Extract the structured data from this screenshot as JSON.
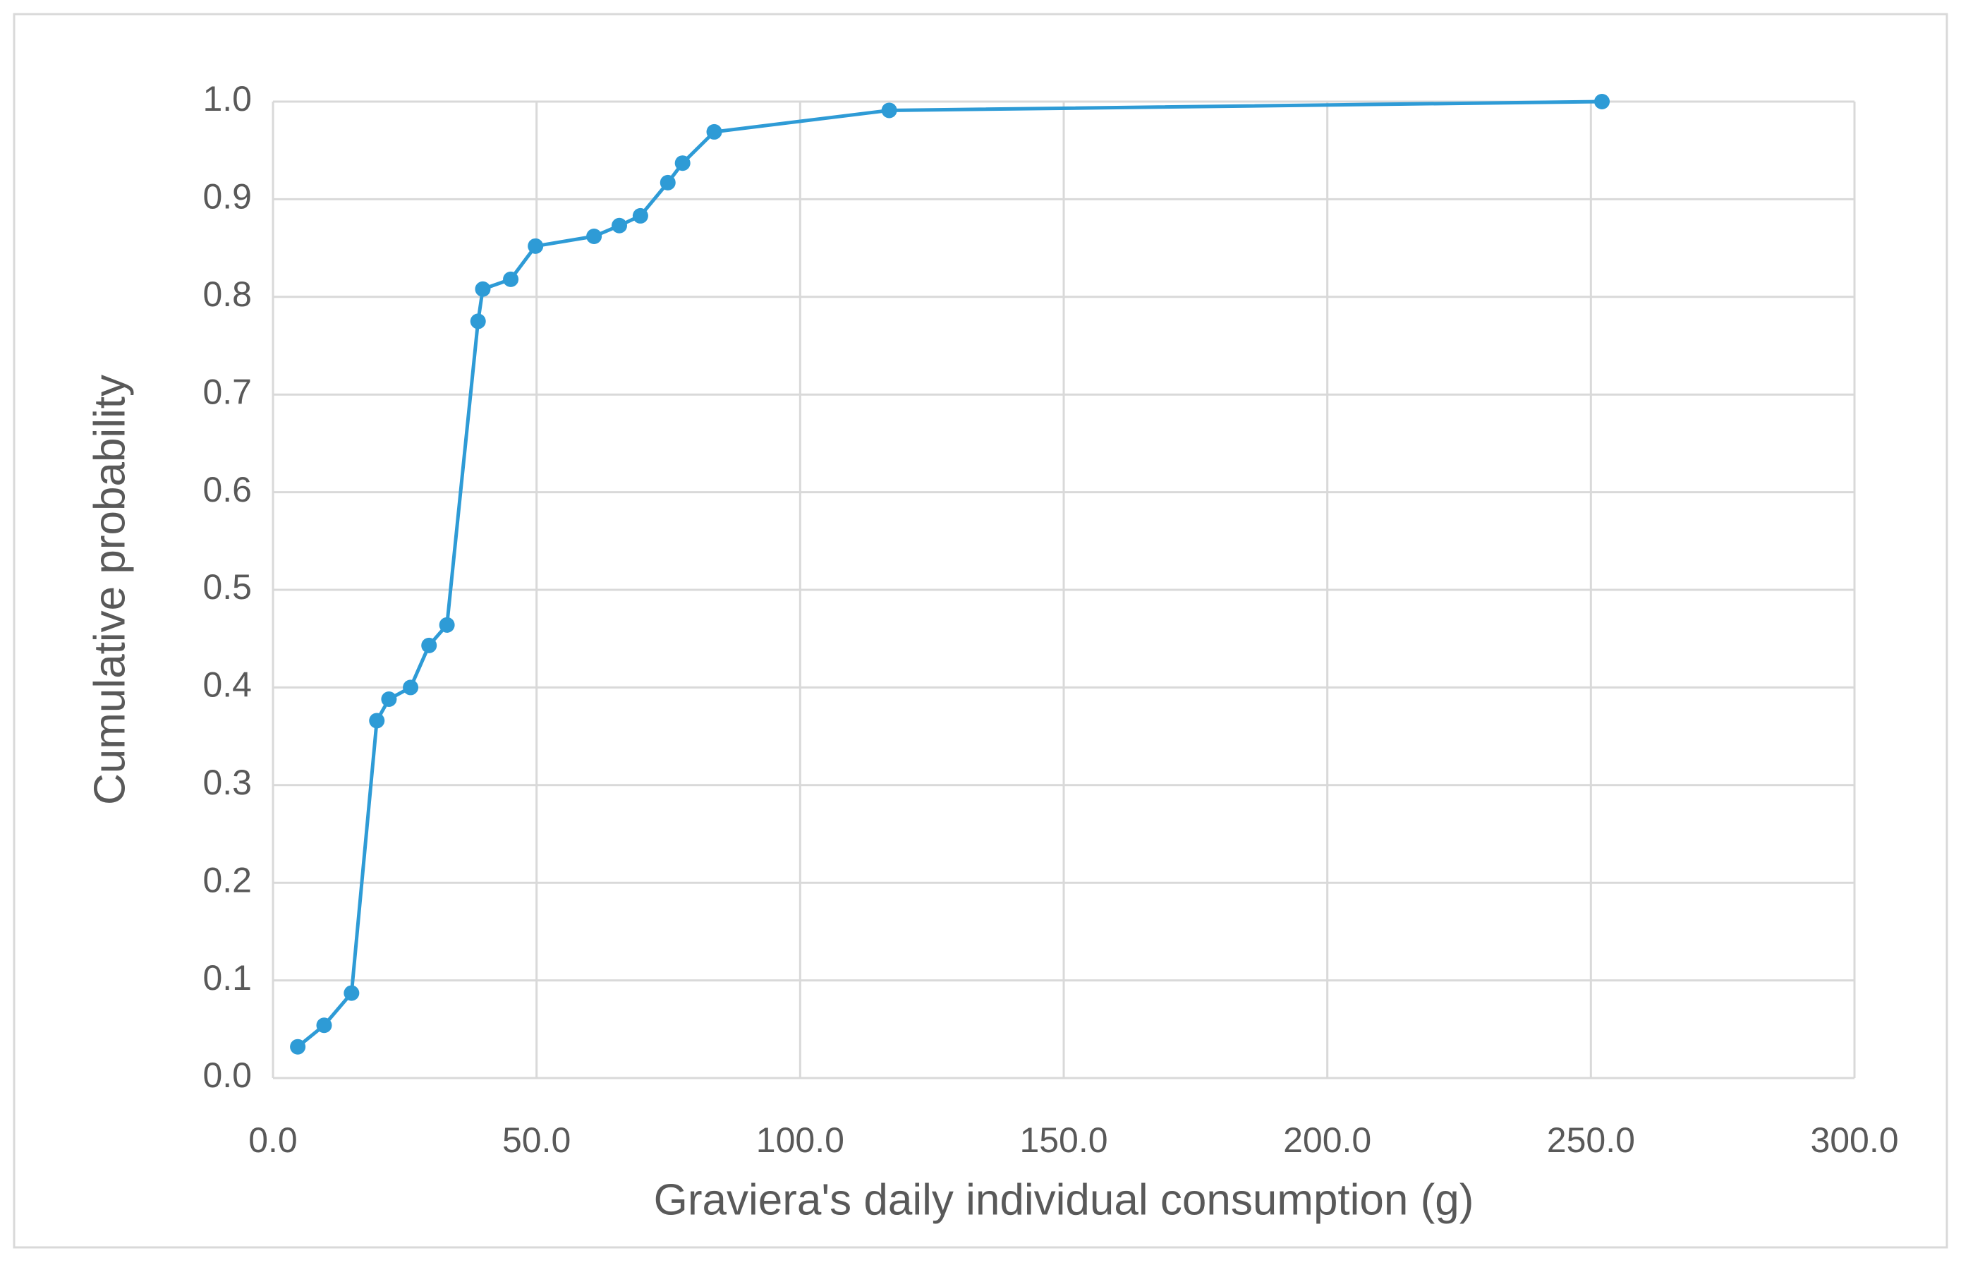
{
  "chart_data": {
    "type": "line",
    "x_label": "Graviera's  daily individual consumption (g)",
    "y_label": "Cumulative probability",
    "xlim": [
      0,
      300
    ],
    "ylim": [
      0,
      1
    ],
    "xticks": [
      {
        "value": 0,
        "label": "0.0"
      },
      {
        "value": 50,
        "label": "50.0"
      },
      {
        "value": 100,
        "label": "100.0"
      },
      {
        "value": 150,
        "label": "150.0"
      },
      {
        "value": 200,
        "label": "200.0"
      },
      {
        "value": 250,
        "label": "250.0"
      },
      {
        "value": 300,
        "label": "300.0"
      }
    ],
    "yticks": [
      {
        "value": 0,
        "label": "0.0"
      },
      0.1,
      0.2,
      0.3,
      0.4,
      0.5,
      0.6,
      0.7,
      0.8,
      0.9,
      {
        "value": 1,
        "label": "1.0"
      }
    ],
    "grid": true,
    "series": [
      {
        "color": "#2e9bd6",
        "x": [
          4.7,
          9.7,
          14.9,
          19.7,
          22.0,
          26.1,
          29.6,
          33.0,
          38.9,
          39.8,
          45.1,
          49.8,
          60.9,
          65.7,
          69.7,
          74.9,
          77.7,
          83.7,
          116.9,
          252.1
        ],
        "values": [
          0.032,
          0.054,
          0.087,
          0.366,
          0.388,
          0.4,
          0.443,
          0.464,
          0.775,
          0.808,
          0.818,
          0.852,
          0.862,
          0.873,
          0.883,
          0.917,
          0.937,
          0.969,
          0.991,
          1.0
        ]
      }
    ]
  }
}
